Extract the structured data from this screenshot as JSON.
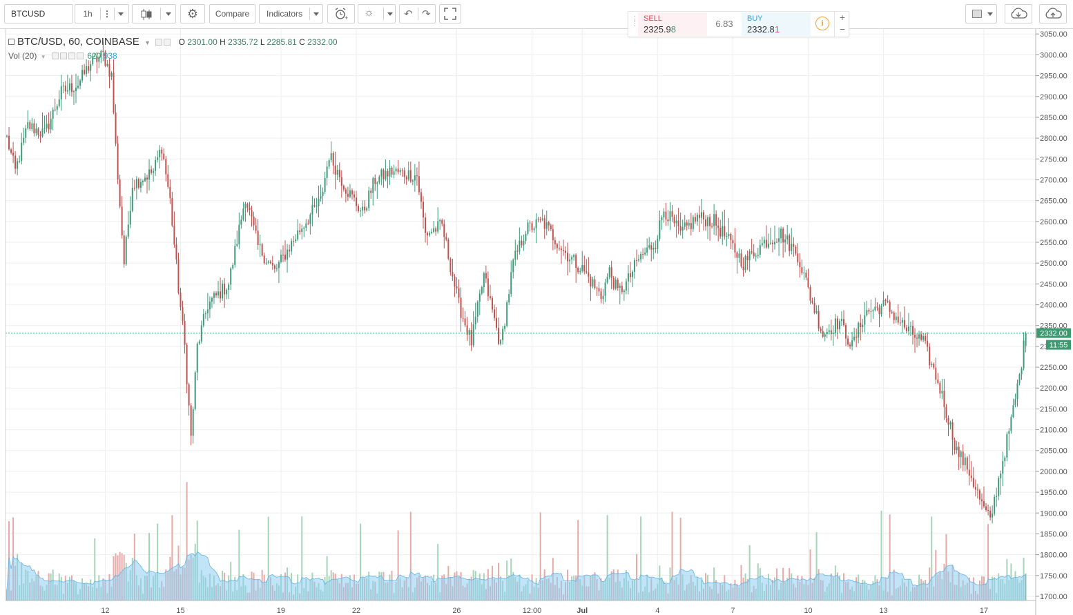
{
  "toolbar": {
    "symbol": "BTCUSD",
    "interval": "1h",
    "compare_label": "Compare",
    "indicators_label": "Indicators"
  },
  "trade_widget": {
    "sell_label": "SELL",
    "sell_price_main": "2325.9",
    "sell_price_last": "8",
    "spread": "6.83",
    "buy_label": "BUY",
    "buy_price_main": "2332.8",
    "buy_price_last": "1",
    "info_glyph": "i",
    "plus_glyph": "+",
    "minus_glyph": "−"
  },
  "legend": {
    "title": "BTC/USD, 60, COINBASE",
    "o_label": "O",
    "o_value": "2301.00",
    "h_label": "H",
    "h_value": "2335.72",
    "l_label": "L",
    "l_value": "2285.81",
    "c_label": "C",
    "c_value": "2332.00",
    "vol_label": "Vol (20)",
    "vol_value": "620",
    "vol_ma_value": "938"
  },
  "last_price": {
    "label": "2332.00",
    "countdown": "11:55"
  },
  "colors": {
    "up": "#3e9a78",
    "down": "#c0504d",
    "volume_up": "#a6d4b9",
    "volume_down": "#e6a9a8",
    "volume_ma": "#8ecdf2",
    "last_price": "#3d9970",
    "sell": "#e0435d",
    "buy": "#2aa7d6",
    "grid": "#eeeeee"
  },
  "icons": [
    "menu-dots-icon",
    "candles-icon",
    "gear-icon",
    "alarm-clock-icon",
    "lightbulb-icon",
    "undo-icon",
    "redo-icon",
    "fullscreen-icon",
    "square-icon",
    "cloud-download-icon",
    "cloud-upload-icon",
    "info-icon"
  ],
  "chart_data": {
    "type": "candlestick",
    "symbol": "BTC/USD",
    "interval": "60",
    "exchange": "COINBASE",
    "y_ticks": [
      "3050.00",
      "3000.00",
      "2950.00",
      "2900.00",
      "2850.00",
      "2800.00",
      "2750.00",
      "2700.00",
      "2650.00",
      "2600.00",
      "2550.00",
      "2500.00",
      "2450.00",
      "2400.00",
      "2350.00",
      "2300.00",
      "2250.00",
      "2200.00",
      "2150.00",
      "2100.00",
      "2050.00",
      "2000.00",
      "1950.00",
      "1900.00",
      "1850.00",
      "1800.00",
      "1750.00",
      "1700.00"
    ],
    "ylim": [
      1690,
      3062
    ],
    "x_labels": [
      {
        "label": "12",
        "bar": 47
      },
      {
        "label": "15",
        "bar": 83
      },
      {
        "label": "19",
        "bar": 131
      },
      {
        "label": "22",
        "bar": 167
      },
      {
        "label": "26",
        "bar": 215
      },
      {
        "label": "12:00",
        "bar": 251
      },
      {
        "label": "Jul",
        "bar": 275
      },
      {
        "label": "4",
        "bar": 311
      },
      {
        "label": "7",
        "bar": 347
      },
      {
        "label": "10",
        "bar": 383
      },
      {
        "label": "13",
        "bar": 419
      },
      {
        "label": "17",
        "bar": 467
      }
    ],
    "bar_count": 488,
    "path_keypoints": [
      [
        0,
        2800
      ],
      [
        4,
        2720
      ],
      [
        10,
        2830
      ],
      [
        18,
        2810
      ],
      [
        26,
        2910
      ],
      [
        34,
        2930
      ],
      [
        40,
        2980
      ],
      [
        46,
        3000
      ],
      [
        50,
        2950
      ],
      [
        52,
        2780
      ],
      [
        56,
        2500
      ],
      [
        60,
        2690
      ],
      [
        70,
        2720
      ],
      [
        74,
        2780
      ],
      [
        78,
        2650
      ],
      [
        82,
        2440
      ],
      [
        85,
        2300
      ],
      [
        88,
        2080
      ],
      [
        91,
        2300
      ],
      [
        96,
        2400
      ],
      [
        106,
        2450
      ],
      [
        114,
        2660
      ],
      [
        120,
        2540
      ],
      [
        128,
        2480
      ],
      [
        140,
        2580
      ],
      [
        150,
        2650
      ],
      [
        154,
        2760
      ],
      [
        162,
        2680
      ],
      [
        170,
        2620
      ],
      [
        176,
        2700
      ],
      [
        184,
        2720
      ],
      [
        196,
        2710
      ],
      [
        200,
        2570
      ],
      [
        208,
        2590
      ],
      [
        216,
        2400
      ],
      [
        222,
        2310
      ],
      [
        228,
        2470
      ],
      [
        236,
        2300
      ],
      [
        242,
        2500
      ],
      [
        248,
        2580
      ],
      [
        256,
        2600
      ],
      [
        266,
        2530
      ],
      [
        276,
        2480
      ],
      [
        284,
        2420
      ],
      [
        288,
        2480
      ],
      [
        292,
        2430
      ],
      [
        296,
        2450
      ],
      [
        302,
        2510
      ],
      [
        310,
        2550
      ],
      [
        314,
        2630
      ],
      [
        322,
        2570
      ],
      [
        330,
        2610
      ],
      [
        338,
        2600
      ],
      [
        344,
        2560
      ],
      [
        352,
        2500
      ],
      [
        362,
        2550
      ],
      [
        370,
        2570
      ],
      [
        378,
        2520
      ],
      [
        384,
        2420
      ],
      [
        390,
        2330
      ],
      [
        398,
        2360
      ],
      [
        404,
        2300
      ],
      [
        410,
        2380
      ],
      [
        420,
        2400
      ],
      [
        430,
        2340
      ],
      [
        438,
        2310
      ],
      [
        446,
        2200
      ],
      [
        454,
        2050
      ],
      [
        460,
        2000
      ],
      [
        466,
        1920
      ],
      [
        470,
        1880
      ],
      [
        474,
        1980
      ],
      [
        480,
        2120
      ],
      [
        484,
        2230
      ],
      [
        487,
        2332
      ]
    ],
    "last": {
      "open": 2301.0,
      "high": 2335.72,
      "low": 2285.81,
      "close": 2332.0,
      "volume": 620,
      "volume_ma": 938
    }
  }
}
